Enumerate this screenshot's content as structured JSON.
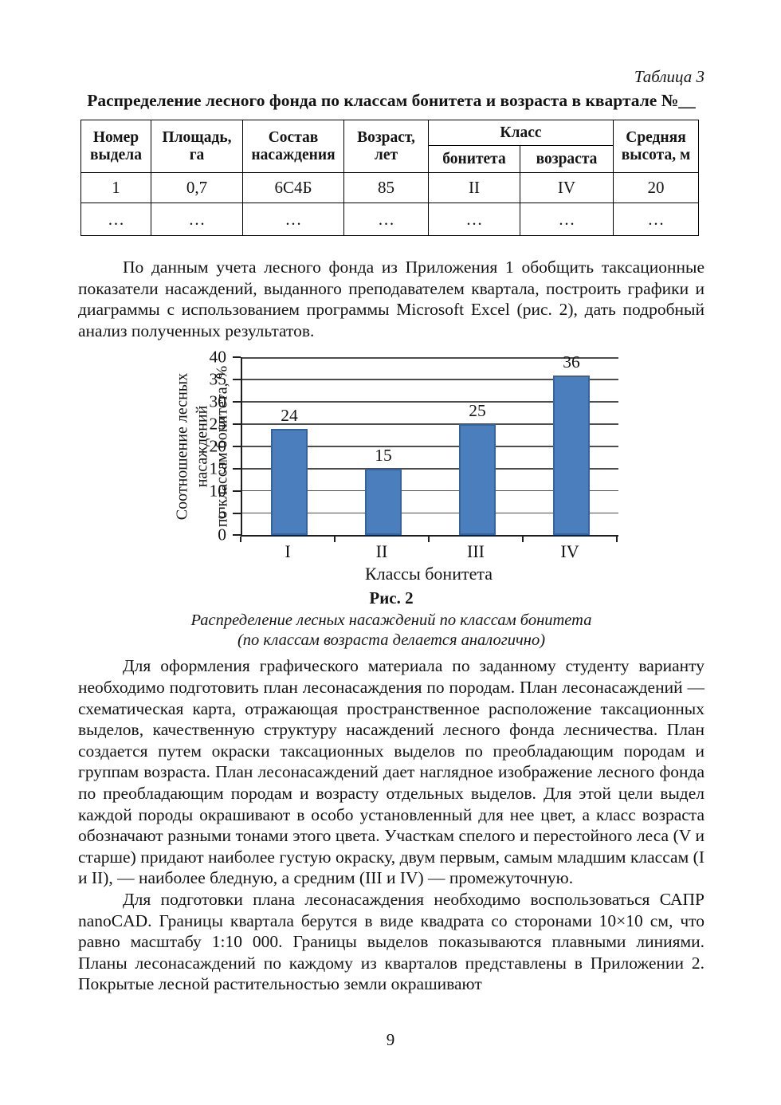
{
  "table_label": "Таблица 3",
  "table_title": "Распределение лесного фонда по классам бонитета и возраста в квартале №__",
  "table": {
    "headers": {
      "number": "Номер выдела",
      "area": "Площадь, га",
      "composition": "Состав насаждения",
      "age": "Возраст, лет",
      "class_group": "Класс",
      "bonitet": "бонитета",
      "age_class": "возраста",
      "avg_height": "Средняя высота, м"
    },
    "rows": [
      [
        "1",
        "0,7",
        "6С4Б",
        "85",
        "II",
        "IV",
        "20"
      ],
      [
        "…",
        "…",
        "…",
        "…",
        "…",
        "…",
        "…"
      ]
    ]
  },
  "paragraphs": {
    "p1": "По данным учета лесного фонда из Приложения 1 обобщить таксационные показатели насаждений, выданного преподавателем квартала, построить графики и диаграммы с использованием программы Microsoft Excel (рис. 2), дать подробный анализ полученных результатов.",
    "p2": "Для оформления графического материала по заданному студенту варианту необходимо подготовить план лесонасаждения по породам. План лесонасаждений — схематическая карта, отражающая пространственное расположение таксационных выделов, качественную структуру насаждений лесного фонда лесничества. План создается путем окраски таксационных выделов по преобладающим породам и группам возраста. План лесонасаждений дает наглядное изображение лесного фонда по преобладающим породам и возрасту отдельных выделов. Для этой цели выдел каждой породы окрашивают в особо установленный для нее цвет, а класс возраста обозначают разными тонами этого цвета. Участкам спелого и перестойного леса (V и старше) придают наиболее густую окраску, двум первым, самым младшим классам (I и II), — наиболее бледную, а средним (III и IV) — промежуточную.",
    "p3": "Для подготовки плана лесонасаждения необходимо воспользоваться САПР nanoCAD. Границы квартала берутся в виде квадрата со сторонами 10×10 см, что равно масштабу 1:10 000. Границы выделов показываются плавными линиями. Планы лесонасаждений по каждому из кварталов представлены в Приложении 2. Покрытые лесной растительностью земли окрашивают"
  },
  "figure": {
    "label": "Рис. 2",
    "caption_line1": "Распределение лесных насаждений по классам бонитета",
    "caption_line2": "(по классам возраста делается аналогично)"
  },
  "chart_data": {
    "type": "bar",
    "categories": [
      "I",
      "II",
      "III",
      "IV"
    ],
    "values": [
      24,
      15,
      25,
      36
    ],
    "title": "",
    "xlabel": "Классы бонитета",
    "ylabel": "Соотношение лесных\nнасаждений\nпо классам бонитета, %",
    "ylim": [
      0,
      40
    ],
    "ytick_step": 5,
    "grid": "horizontal",
    "legend": "none",
    "data_labels": true,
    "bar_color": "#4a7ebc",
    "bar_border_color": "#36639e",
    "gridline_color": "#4d4d4d",
    "axis_color": "#1f1f1f"
  },
  "page_number": "9"
}
